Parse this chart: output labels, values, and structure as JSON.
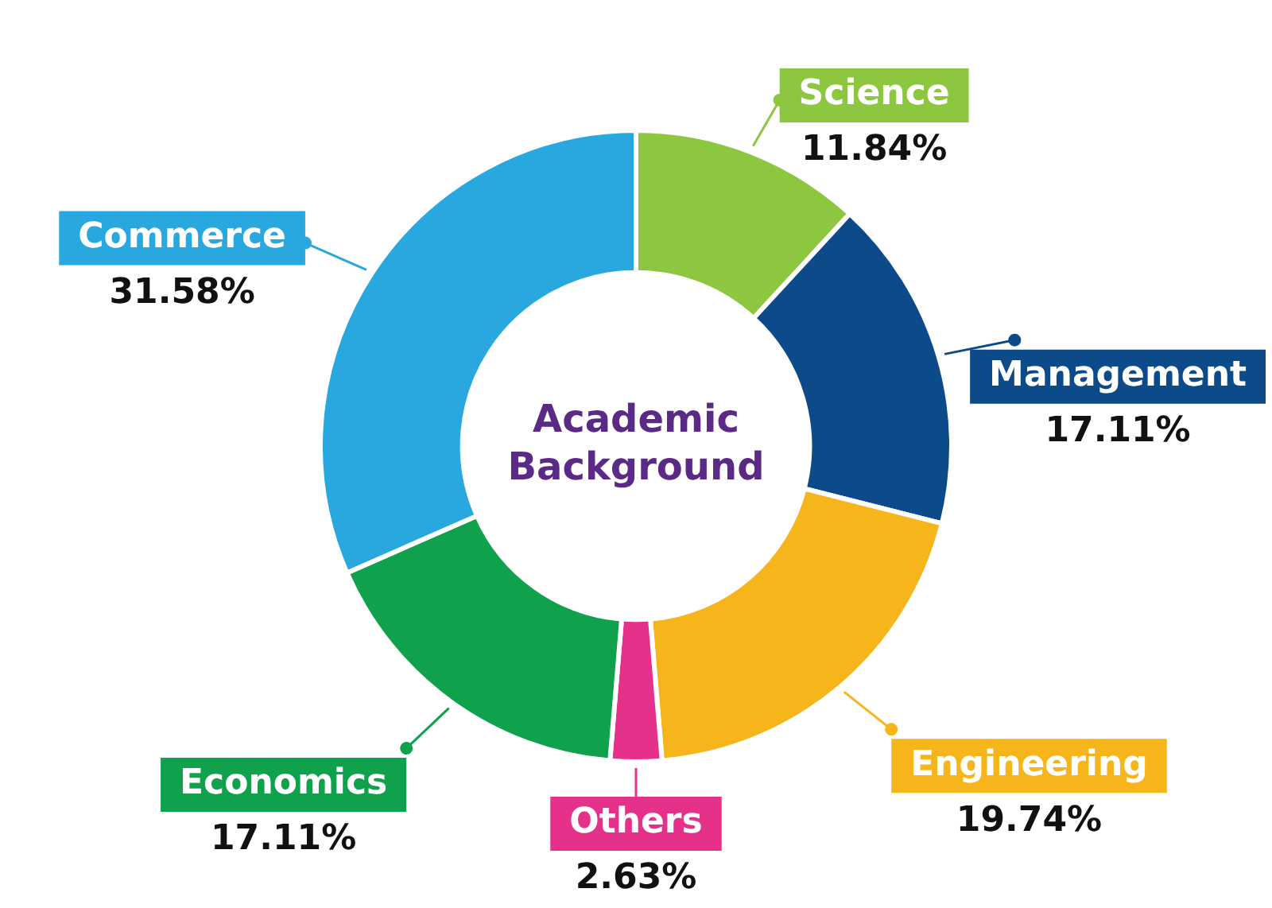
{
  "chart_data": {
    "type": "donut",
    "title": "Academic Background",
    "categories": [
      "Science",
      "Management",
      "Engineering",
      "Others",
      "Economics",
      "Commerce"
    ],
    "values": [
      11.84,
      17.11,
      19.74,
      2.63,
      17.11,
      31.58
    ],
    "colors": [
      "#8dc63f",
      "#0d4a8a",
      "#f7b51c",
      "#e6318a",
      "#0fa14b",
      "#29a8e0"
    ],
    "value_labels": [
      "11.84%",
      "17.11%",
      "19.74%",
      "2.63%",
      "17.11%",
      "31.58%"
    ],
    "legend": "bottom"
  }
}
